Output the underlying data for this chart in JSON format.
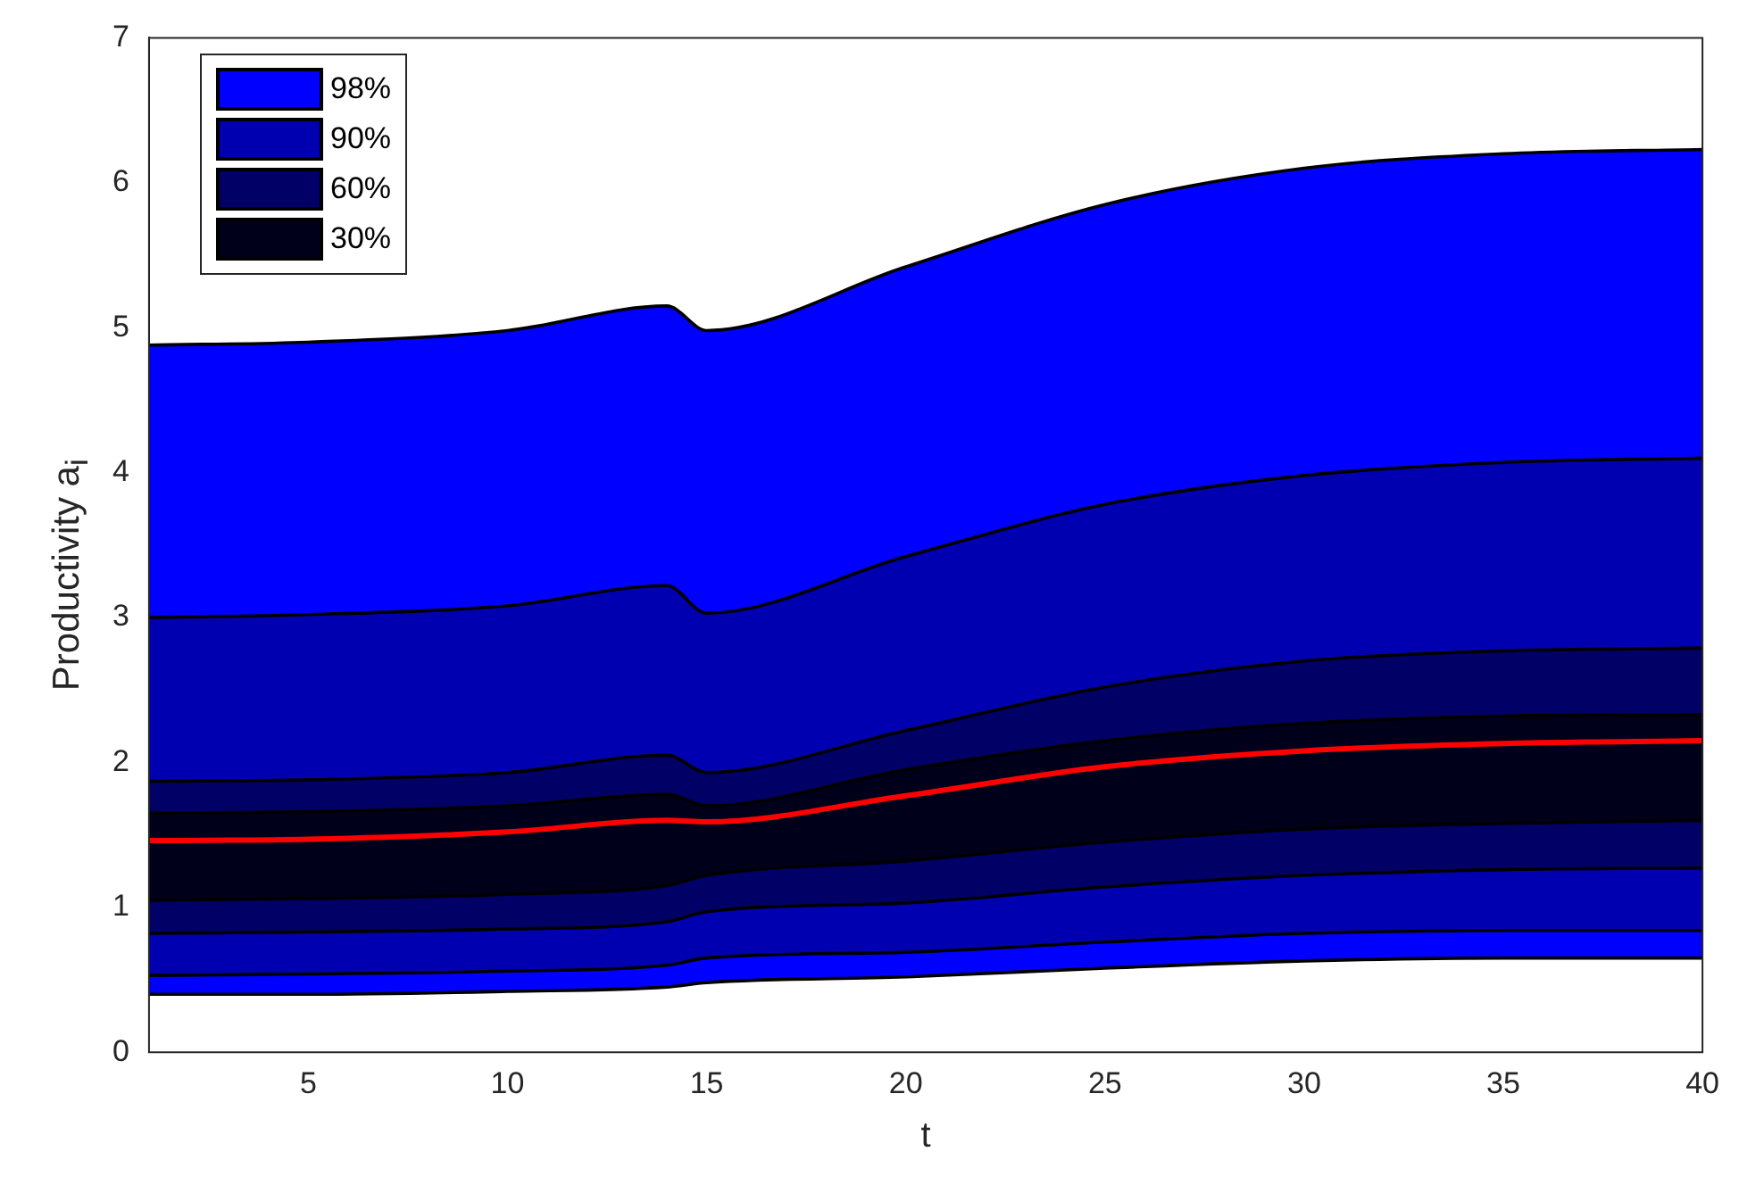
{
  "chart_data": {
    "type": "area",
    "stacked": true,
    "xlabel": "t",
    "ylabel": "Productivity a$_{i}$",
    "x": [
      1,
      5,
      10,
      14,
      15,
      20,
      25,
      30,
      35,
      40
    ],
    "xlim": [
      1,
      40
    ],
    "xticks": [
      5,
      10,
      15,
      20,
      25,
      30,
      35,
      40
    ],
    "ylim": [
      0,
      7
    ],
    "yticks": [
      0,
      1,
      2,
      3,
      4,
      5,
      6,
      7
    ],
    "grid": false,
    "legend": "top left",
    "series": [
      {
        "color": "#ffffff",
        "values": [
          0.4,
          0.4,
          0.42,
          0.45,
          0.48,
          0.52,
          0.58,
          0.63,
          0.65,
          0.65
        ]
      },
      {
        "color": "#0000ff",
        "values": [
          0.13,
          0.14,
          0.14,
          0.15,
          0.17,
          0.17,
          0.18,
          0.19,
          0.19,
          0.19
        ]
      },
      {
        "color": "#0000b0",
        "values": [
          0.29,
          0.29,
          0.29,
          0.3,
          0.32,
          0.34,
          0.38,
          0.4,
          0.42,
          0.43
        ]
      },
      {
        "color": "#000066",
        "values": [
          0.23,
          0.23,
          0.24,
          0.25,
          0.25,
          0.29,
          0.31,
          0.32,
          0.32,
          0.33
        ]
      },
      {
        "name": "30%",
        "color": "#00001a",
        "values": [
          0.6,
          0.6,
          0.61,
          0.63,
          0.48,
          0.63,
          0.7,
          0.73,
          0.74,
          0.73
        ]
      },
      {
        "name": "60%",
        "color": "#000066",
        "values": [
          0.22,
          0.22,
          0.23,
          0.27,
          0.23,
          0.27,
          0.37,
          0.43,
          0.45,
          0.46
        ]
      },
      {
        "name": "90%",
        "color": "#0000b0",
        "values": [
          1.13,
          1.14,
          1.15,
          1.17,
          1.1,
          1.2,
          1.26,
          1.28,
          1.3,
          1.31
        ]
      },
      {
        "name": "98%",
        "color": "#0000ff",
        "values": [
          1.88,
          1.88,
          1.9,
          1.93,
          1.95,
          2.0,
          2.07,
          2.12,
          2.13,
          2.13
        ]
      },
      {
        "type": "line",
        "color": "#ff0000",
        "values": [
          1.46,
          1.47,
          1.52,
          1.6,
          1.59,
          1.77,
          1.97,
          2.08,
          2.13,
          2.15
        ]
      }
    ]
  }
}
